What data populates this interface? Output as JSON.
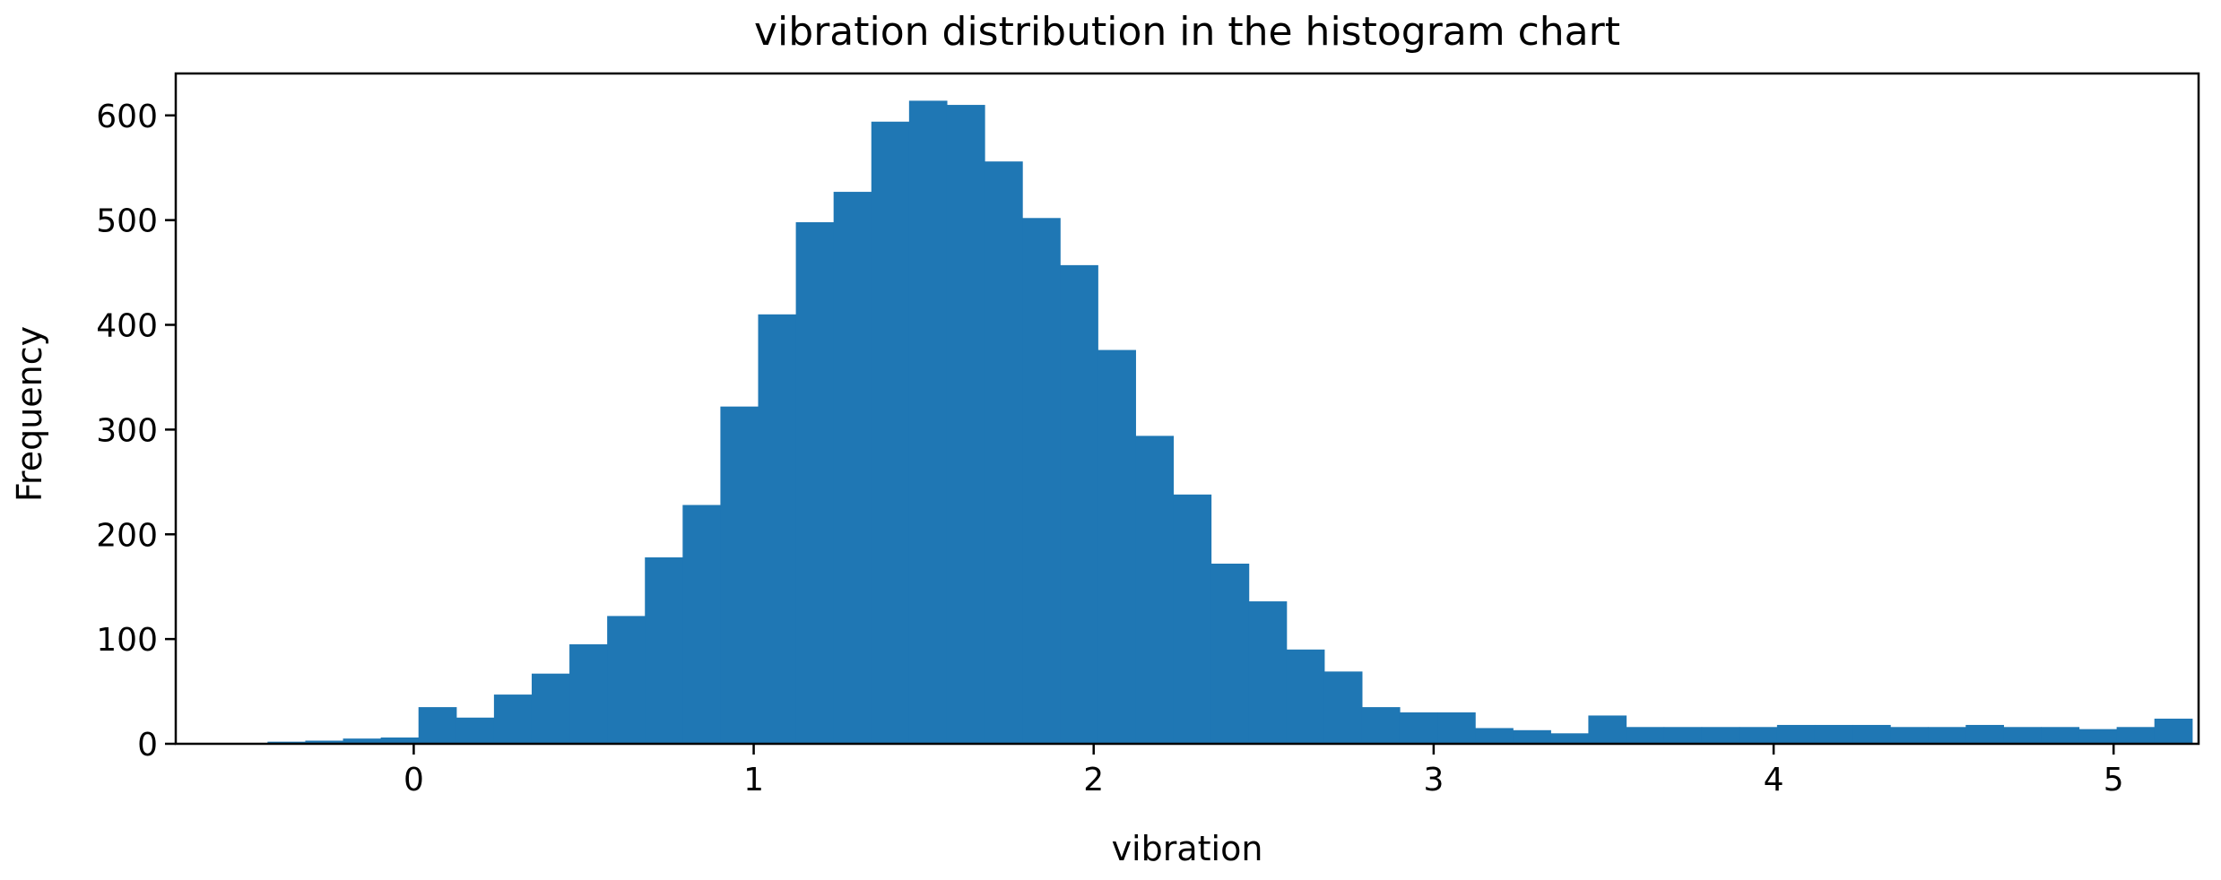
{
  "chart_data": {
    "type": "bar",
    "title": "vibration distribution in the histogram chart",
    "xlabel": "vibration",
    "ylabel": "Frequency",
    "xlim": [
      -0.7,
      5.25
    ],
    "ylim": [
      0,
      640
    ],
    "xticks": [
      0,
      1,
      2,
      3,
      4,
      5
    ],
    "yticks": [
      0,
      100,
      200,
      300,
      400,
      500,
      600
    ],
    "bar_color": "#1f77b4",
    "grid": false,
    "bins": {
      "start": -0.43,
      "width": 0.111,
      "counts": [
        2,
        3,
        5,
        6,
        35,
        25,
        47,
        67,
        95,
        122,
        178,
        228,
        322,
        410,
        498,
        527,
        594,
        614,
        610,
        556,
        502,
        457,
        376,
        294,
        238,
        172,
        136,
        90,
        69,
        35,
        30,
        30,
        15,
        13,
        10,
        27,
        16,
        16,
        16,
        16,
        18,
        18,
        18,
        16,
        16,
        18,
        16,
        16,
        14,
        16,
        24
      ]
    }
  }
}
